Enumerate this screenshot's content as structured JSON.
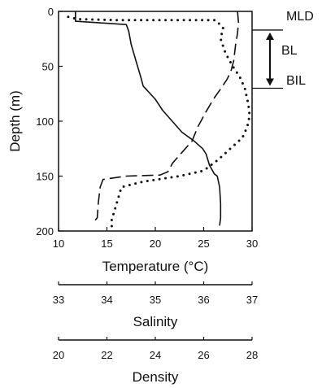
{
  "chart_data": {
    "type": "line",
    "y_axis": {
      "label": "Depth (m)",
      "ticks": [
        "0",
        "50",
        "100",
        "150",
        "200"
      ],
      "range": [
        0,
        200
      ],
      "inverted": true
    },
    "x_axes": [
      {
        "key": "temperature",
        "label": "Temperature (°C)",
        "ticks": [
          "10",
          "15",
          "20",
          "25",
          "30"
        ],
        "range": [
          10,
          30
        ]
      },
      {
        "key": "salinity",
        "label": "Salinity",
        "ticks": [
          "33",
          "34",
          "35",
          "36",
          "37"
        ],
        "range": [
          33,
          37
        ]
      },
      {
        "key": "density",
        "label": "Density",
        "ticks": [
          "20",
          "22",
          "24",
          "26",
          "28"
        ],
        "range": [
          20,
          28
        ]
      }
    ],
    "series": [
      {
        "key": "temperature",
        "axis": "temperature",
        "style": "dashed",
        "points": [
          [
            28.5,
            0
          ],
          [
            28.6,
            10
          ],
          [
            28.5,
            20
          ],
          [
            28.3,
            30
          ],
          [
            28.1,
            45
          ],
          [
            27.8,
            55
          ],
          [
            27.4,
            62
          ],
          [
            26.8,
            70
          ],
          [
            26.0,
            80
          ],
          [
            25.2,
            92
          ],
          [
            24.4,
            105
          ],
          [
            23.8,
            118
          ],
          [
            22.8,
            128
          ],
          [
            21.8,
            138
          ],
          [
            21.3,
            146
          ],
          [
            20.5,
            149
          ],
          [
            17.0,
            150
          ],
          [
            14.6,
            153
          ],
          [
            14.3,
            160
          ],
          [
            14.1,
            175
          ],
          [
            14.0,
            188
          ],
          [
            13.6,
            192
          ]
        ]
      },
      {
        "key": "salinity",
        "axis": "salinity",
        "style": "solid",
        "points": [
          [
            33.35,
            0
          ],
          [
            33.35,
            9
          ],
          [
            34.4,
            12
          ],
          [
            34.45,
            18
          ],
          [
            34.5,
            30
          ],
          [
            34.6,
            45
          ],
          [
            34.7,
            60
          ],
          [
            34.75,
            68
          ],
          [
            35.0,
            80
          ],
          [
            35.15,
            90
          ],
          [
            35.35,
            100
          ],
          [
            35.55,
            110
          ],
          [
            35.8,
            118
          ],
          [
            35.98,
            125
          ],
          [
            36.05,
            130
          ],
          [
            36.12,
            140
          ],
          [
            36.22,
            148
          ],
          [
            36.28,
            150
          ],
          [
            36.33,
            160
          ],
          [
            36.35,
            175
          ],
          [
            36.35,
            188
          ],
          [
            36.33,
            195
          ]
        ]
      },
      {
        "key": "density",
        "axis": "density",
        "style": "dotted",
        "points": [
          [
            20.4,
            5
          ],
          [
            20.8,
            7
          ],
          [
            22.5,
            8
          ],
          [
            24.5,
            8
          ],
          [
            26.5,
            8
          ],
          [
            26.8,
            15
          ],
          [
            26.7,
            25
          ],
          [
            26.9,
            38
          ],
          [
            27.2,
            50
          ],
          [
            27.5,
            60
          ],
          [
            27.7,
            70
          ],
          [
            27.85,
            85
          ],
          [
            27.9,
            95
          ],
          [
            27.8,
            105
          ],
          [
            27.6,
            115
          ],
          [
            27.1,
            125
          ],
          [
            26.6,
            135
          ],
          [
            26.0,
            145
          ],
          [
            25.0,
            150
          ],
          [
            23.5,
            155
          ],
          [
            22.6,
            160
          ],
          [
            22.4,
            175
          ],
          [
            22.2,
            190
          ],
          [
            22.2,
            199
          ]
        ]
      }
    ],
    "annotations": [
      {
        "label": "MLD",
        "depth": 17
      },
      {
        "label": "BL",
        "from": 17,
        "to": 70
      },
      {
        "label": "BIL",
        "depth": 70
      }
    ]
  }
}
